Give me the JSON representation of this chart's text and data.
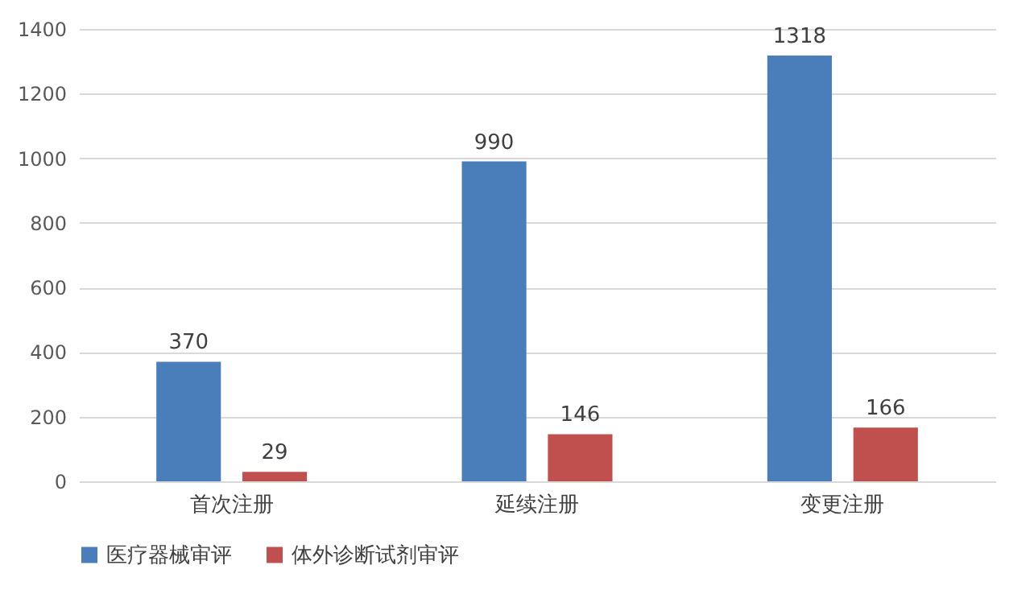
{
  "chart_data": {
    "type": "bar",
    "categories": [
      "首次注册",
      "延续注册",
      "变更注册"
    ],
    "series": [
      {
        "name": "医疗器械审评",
        "color": "#4a7ebb",
        "values": [
          370,
          990,
          1318
        ]
      },
      {
        "name": "体外诊断试剂审评",
        "color": "#c0504d",
        "values": [
          29,
          146,
          166
        ]
      }
    ],
    "ylim": [
      0,
      1400
    ],
    "yticks": [
      0,
      200,
      400,
      600,
      800,
      1000,
      1200,
      1400
    ],
    "grid": "y",
    "legend": "bottom",
    "data_labels": true
  }
}
